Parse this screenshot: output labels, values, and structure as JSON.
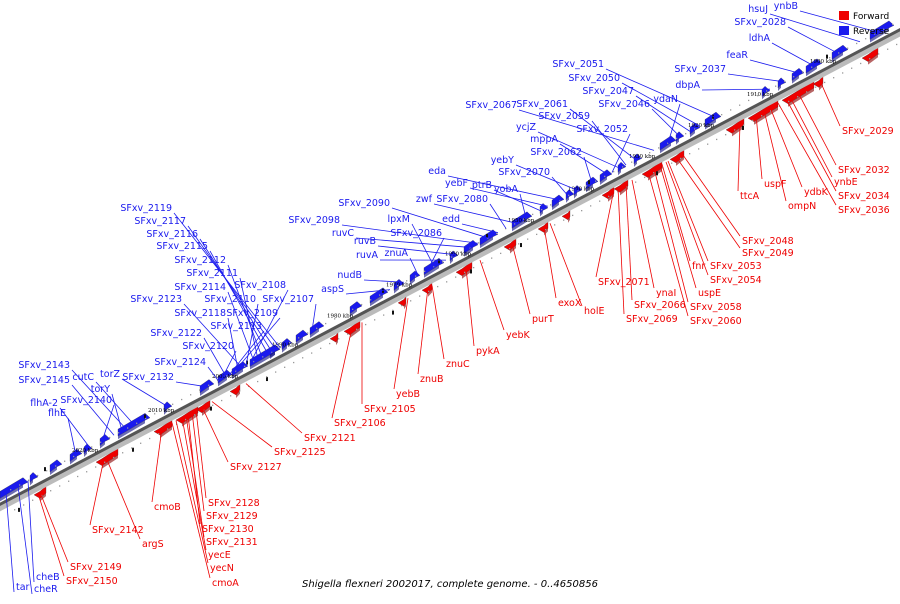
{
  "caption": "Shigella flexneri 2002017, complete genome. - 0..4650856",
  "colors": {
    "forward": "#ee0000",
    "reverse": "#1a1aee",
    "axis": "#555555"
  },
  "legend": [
    {
      "label": "Forward",
      "color": "#ee0000"
    },
    {
      "label": "Reverse",
      "color": "#1a1aee"
    }
  ],
  "ticks": [
    "1900 kbp",
    "1910 kbp",
    "1920 kbp",
    "1930 kbp",
    "1940 kbp",
    "1950 kbp",
    "1960 kbp",
    "1970 kbp",
    "1980 kbp",
    "1990 kbp",
    "2000 kbp",
    "2010 kbp",
    "2020 kbp"
  ],
  "forward_genes": [
    "SFxv_2029",
    "SFxv_2032",
    "ynbE",
    "SFxv_2034",
    "SFxv_2036",
    "ydbK",
    "ompN",
    "uspF",
    "ttcA",
    "SFxv_2048",
    "SFxv_2049",
    "fnr",
    "SFxv_2053",
    "SFxv_2054",
    "uspE",
    "SFxv_2058",
    "SFxv_2060",
    "ynaI",
    "SFxv_2066",
    "SFxv_2069",
    "SFxv_2071",
    "holE",
    "exoX",
    "purT",
    "yebK",
    "pykA",
    "znuC",
    "znuB",
    "yebB",
    "SFxv_2105",
    "SFxv_2106",
    "SFxv_2121",
    "SFxv_2125",
    "SFxv_2127",
    "SFxv_2128",
    "SFxv_2129",
    "SFxv_2130",
    "SFxv_2131",
    "yecE",
    "yecN",
    "cmoA",
    "cmoB",
    "argS",
    "SFxv_2142",
    "SFxv_2149",
    "SFxv_2150"
  ],
  "reverse_genes": [
    "ynbB",
    "hsuJ",
    "SFxv_2028",
    "ldhA",
    "feaR",
    "SFxv_2037",
    "dbpA",
    "SFxv_2051",
    "SFxv_2050",
    "SFxv_2047",
    "SFxv_2046",
    "ydaN",
    "SFxv_2067",
    "SFxv_2061",
    "SFxv_2059",
    "ycjZ",
    "mppA",
    "SFxv_2052",
    "SFxv_2062",
    "yebY",
    "SFxv_2070",
    "eda",
    "yebF",
    "ptrB",
    "yobA",
    "zwf",
    "SFxv_2080",
    "edd",
    "SFxv_2090",
    "SFxv_2098",
    "ruvC",
    "ruvB",
    "ruvA",
    "lpxM",
    "SFxv_2086",
    "znuA",
    "nudB",
    "aspS",
    "SFxv_2119",
    "SFxv_2117",
    "SFxv_2116",
    "SFxv_2115",
    "SFxv_2112",
    "SFxv_2111",
    "SFxv_2114",
    "SFxv_2108",
    "SFxv_2110",
    "SFxv_2123",
    "SFxv_2118",
    "SFxv_2109",
    "SFxv_2107",
    "SFxv_2113",
    "SFxv_2122",
    "SFxv_2120",
    "SFxv_2124",
    "SFxv_2132",
    "torZ",
    "cutC",
    "SFxv_2143",
    "torY",
    "SFxv_2145",
    "SFxv_2140",
    "flhA-2",
    "flhE",
    "tar",
    "cheB",
    "cheR"
  ]
}
